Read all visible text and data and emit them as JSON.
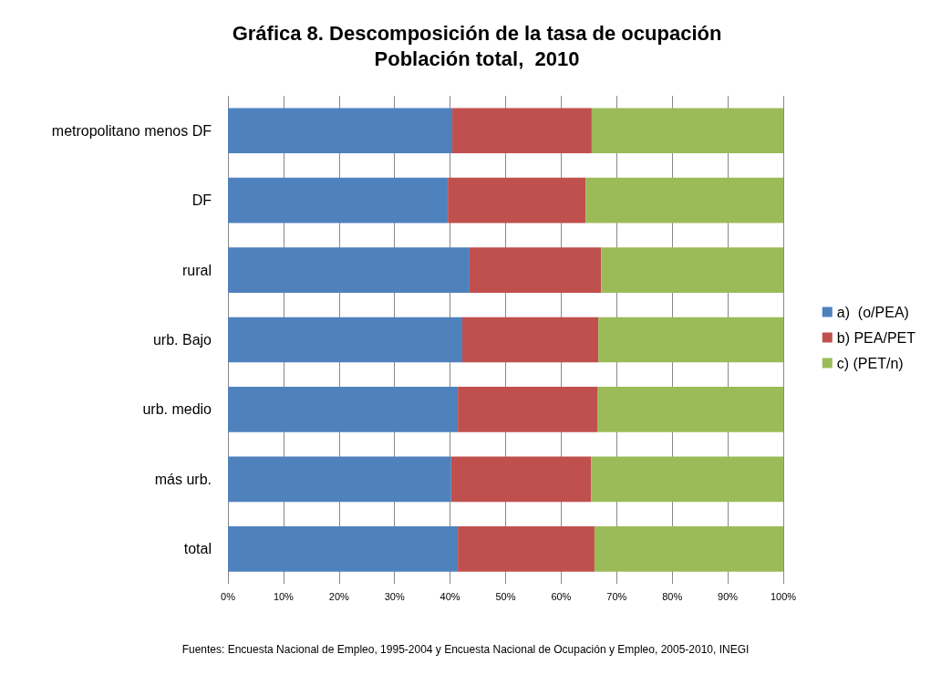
{
  "chart_data": {
    "type": "bar",
    "orientation": "horizontal",
    "stacked": true,
    "title": "Gráfica 8. Descomposición de la tasa de ocupación",
    "subtitle": "Población total,  2010",
    "categories": [
      "metropolitano menos DF",
      "DF",
      "rural",
      "urb. Bajo",
      "urb. medio",
      "más urb.",
      "total"
    ],
    "series": [
      {
        "name": "a)  (o/PEA)",
        "color": "#4f81bd",
        "values": [
          40.4,
          39.6,
          43.5,
          42.2,
          41.4,
          40.2,
          41.4
        ]
      },
      {
        "name": "b) PEA/PET",
        "color": "#c0504d",
        "values": [
          25.1,
          24.8,
          23.7,
          24.5,
          25.1,
          25.2,
          24.6
        ]
      },
      {
        "name": "c) (PET/n)",
        "color": "#9bbb59",
        "values": [
          34.5,
          35.6,
          32.8,
          33.3,
          33.5,
          34.6,
          34.0
        ]
      }
    ],
    "xlim": [
      0,
      100
    ],
    "xticks": [
      {
        "value": 0,
        "label": "0%"
      },
      {
        "value": 10,
        "label": "10%"
      },
      {
        "value": 20,
        "label": "20%"
      },
      {
        "value": 30,
        "label": "30%"
      },
      {
        "value": 40,
        "label": "40%"
      },
      {
        "value": 50,
        "label": "50%"
      },
      {
        "value": 60,
        "label": "60%"
      },
      {
        "value": 70,
        "label": "70%"
      },
      {
        "value": 80,
        "label": "80%"
      },
      {
        "value": 90,
        "label": "90%"
      },
      {
        "value": 100,
        "label": "100%"
      }
    ],
    "grid": "x",
    "legend": "right",
    "annotations": [
      "Fuentes: Encuesta Nacional de Empleo, 1995-2004 y Encuesta Nacional de Ocupación y Empleo, 2005-2010, INEGI"
    ]
  }
}
